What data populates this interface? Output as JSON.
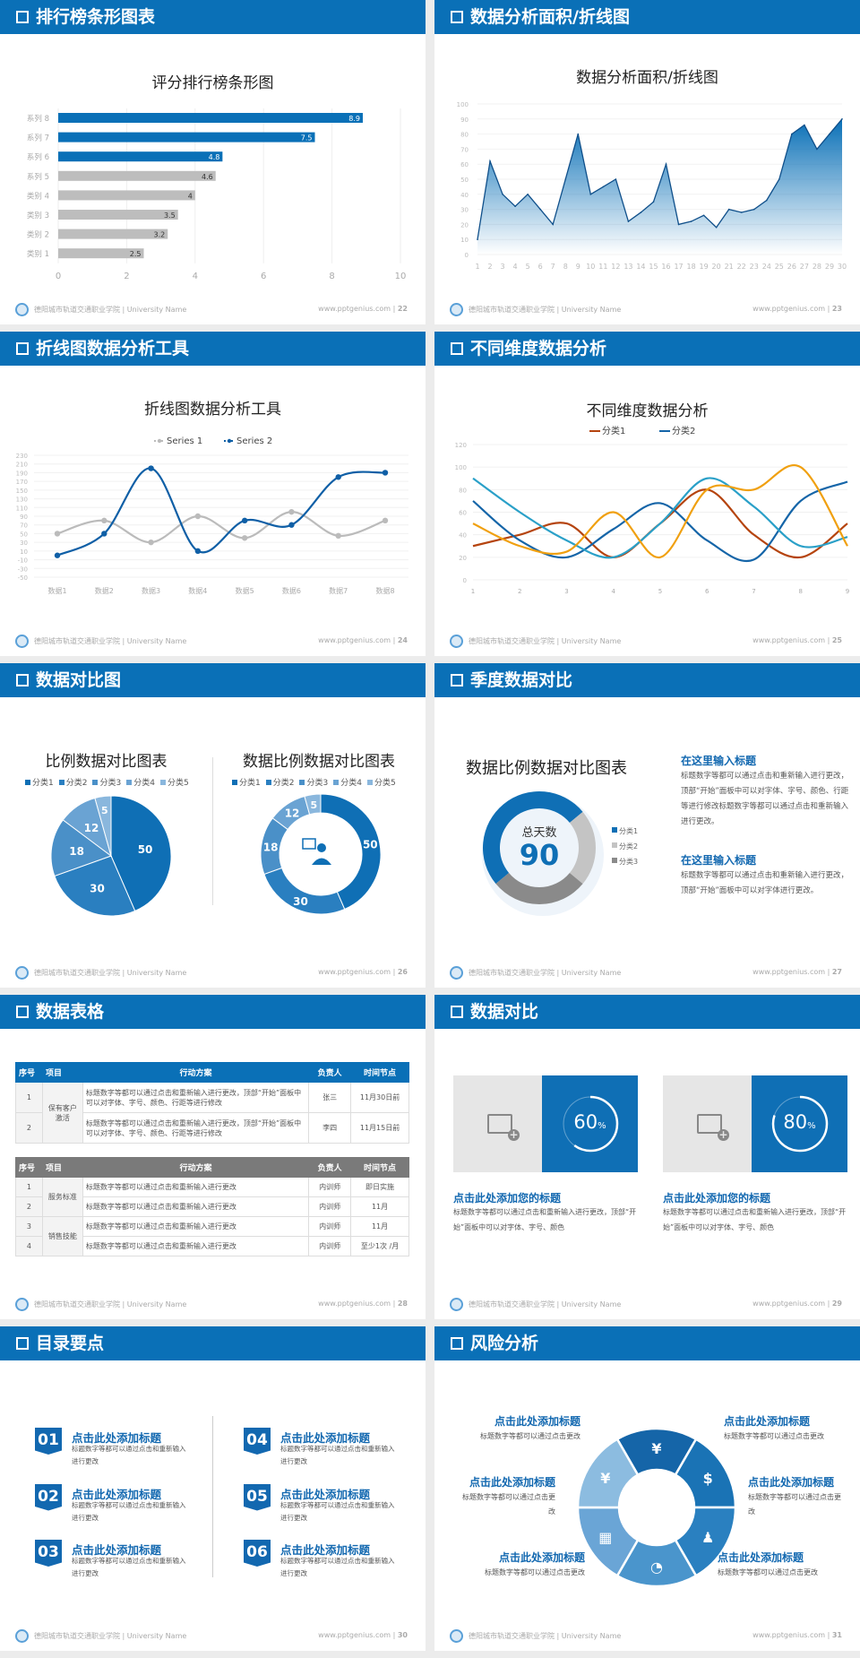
{
  "footer": {
    "school": "德阳城市轨道交通职业学院 | University Name",
    "url": "www.pptgenius.com  |"
  },
  "colors": {
    "primary": "#0a70b7",
    "gray_bar": "#bdbdbd"
  },
  "slides": [
    {
      "title": "排行榜条形图表",
      "page": "22"
    },
    {
      "title": "数据分析面积/折线图",
      "page": "23"
    },
    {
      "title": "折线图数据分析工具",
      "page": "24"
    },
    {
      "title": "不同维度数据分析",
      "page": "25"
    },
    {
      "title": "数据对比图",
      "page": "26"
    },
    {
      "title": "季度数据对比",
      "page": "27"
    },
    {
      "title": "数据表格",
      "page": "28"
    },
    {
      "title": "数据对比",
      "page": "29"
    },
    {
      "title": "目录要点",
      "page": "30"
    },
    {
      "title": "风险分析",
      "page": "31"
    }
  ],
  "chart_data": [
    {
      "type": "bar",
      "title": "评分排行榜条形图",
      "orientation": "horizontal",
      "categories": [
        "系列 8",
        "系列 7",
        "系列 6",
        "系列 5",
        "类别 4",
        "类别 3",
        "类别 2",
        "类别 1"
      ],
      "values": [
        8.9,
        7.5,
        4.8,
        4.6,
        4,
        3.5,
        3.2,
        2.5
      ],
      "highlight_colors": [
        "#0a70b7",
        "#0a70b7",
        "#0a70b7",
        "#bdbdbd",
        "#bdbdbd",
        "#bdbdbd",
        "#bdbdbd",
        "#bdbdbd"
      ],
      "xlim": [
        0,
        10
      ],
      "xticks": [
        "0",
        "2",
        "4",
        "6",
        "8",
        "10"
      ],
      "grid": true
    },
    {
      "type": "area",
      "title": "数据分析面积/折线图",
      "x": [
        "1",
        "2",
        "3",
        "4",
        "5",
        "6",
        "7",
        "8",
        "9",
        "10",
        "11",
        "12",
        "13",
        "14",
        "15",
        "16",
        "17",
        "18",
        "19",
        "20",
        "21",
        "22",
        "23",
        "24",
        "25",
        "26",
        "27",
        "28",
        "29",
        "30"
      ],
      "values": [
        10,
        62,
        40,
        32,
        40,
        30,
        20,
        50,
        80,
        40,
        45,
        50,
        22,
        28,
        35,
        60,
        20,
        22,
        26,
        18,
        30,
        28,
        30,
        36,
        50,
        80,
        86,
        70,
        80,
        90
      ],
      "ylim": [
        0,
        100
      ],
      "yticks": [
        "0",
        "10",
        "20",
        "30",
        "40",
        "50",
        "60",
        "70",
        "80",
        "90",
        "100"
      ],
      "color": "#0a70b7"
    },
    {
      "type": "line",
      "title": "折线图数据分析工具",
      "smooth": true,
      "categories": [
        "数据1",
        "数据2",
        "数据3",
        "数据4",
        "数据5",
        "数据6",
        "数据7",
        "数据8"
      ],
      "series": [
        {
          "name": "Series 1",
          "values": [
            50,
            80,
            30,
            90,
            40,
            100,
            45,
            80
          ],
          "color": "#bbbbbb"
        },
        {
          "name": "Series 2",
          "values": [
            0,
            50,
            200,
            10,
            80,
            70,
            180,
            190
          ],
          "color": "#0f5fa6"
        }
      ],
      "ylim": [
        -50,
        230
      ],
      "yticks": [
        "230",
        "210",
        "190",
        "170",
        "150",
        "130",
        "110",
        "90",
        "70",
        "50",
        "30",
        "10",
        "-10",
        "-30",
        "-50"
      ],
      "legend": "top"
    },
    {
      "type": "line",
      "title": "不同维度数据分析",
      "smooth": true,
      "categories": [
        "1",
        "2",
        "3",
        "4",
        "5",
        "6",
        "7",
        "8",
        "9"
      ],
      "series": [
        {
          "name": "分类1",
          "values": [
            30,
            40,
            50,
            20,
            50,
            80,
            40,
            20,
            50
          ],
          "color": "#b5440f"
        },
        {
          "name": "分类2",
          "values": [
            70,
            35,
            20,
            45,
            68,
            35,
            18,
            70,
            87
          ],
          "color": "#1565a8"
        },
        {
          "values": [
            90,
            60,
            35,
            20,
            50,
            90,
            65,
            30,
            38
          ],
          "color": "#2aa0c8"
        },
        {
          "values": [
            50,
            30,
            25,
            60,
            20,
            80,
            80,
            100,
            30
          ],
          "color": "#f0a010"
        }
      ],
      "ylim": [
        0,
        120
      ],
      "yticks": [
        "0",
        "20",
        "40",
        "60",
        "80",
        "100",
        "120"
      ],
      "legend": "top"
    },
    {
      "type": "pie",
      "title": "比例数据对比图表",
      "categories": [
        "分类1",
        "分类2",
        "分类3",
        "分类4",
        "分类5"
      ],
      "values": [
        50,
        30,
        18,
        12,
        5
      ],
      "colors": [
        "#0f6fb5",
        "#2a7fc0",
        "#4a90c8",
        "#6aa3d3",
        "#8ab7dd"
      ],
      "legend": "top"
    },
    {
      "type": "donut",
      "title": "数据比例数据对比图表",
      "categories": [
        "分类1",
        "分类2",
        "分类3",
        "分类4",
        "分类5"
      ],
      "values": [
        50,
        30,
        18,
        12,
        5
      ],
      "colors": [
        "#0f6fb5",
        "#2a7fc0",
        "#4a90c8",
        "#6aa3d3",
        "#8ab7dd"
      ],
      "legend": "top",
      "center_icon": "presenter-icon"
    },
    {
      "type": "donut",
      "title": "数据比例数据对比图表",
      "center_label": "总天数",
      "center_value": "90",
      "categories": [
        "分类1",
        "分类2",
        "分类3"
      ],
      "values": [
        50,
        22,
        28
      ],
      "colors": [
        "#0f6fb5",
        "#c4c4c4",
        "#8a8a8a"
      ],
      "legend": "right"
    }
  ],
  "quarter": {
    "blocks": [
      {
        "heading": "在这里输入标题",
        "text": "标题数字等都可以通过点击和重新输入进行更改，顶部“开始”面板中可以对字体、字号、颜色、行距等进行修改标题数字等都可以通过点击和重新输入进行更改。"
      },
      {
        "heading": "在这里输入标题",
        "text": "标题数字等都可以通过点击和重新输入进行更改，顶部“开始”面板中可以对字体进行更改。"
      }
    ]
  },
  "tables": {
    "headers": [
      "序号",
      "项目",
      "行动方案",
      "负责人",
      "时间节点"
    ],
    "table1": {
      "color": "#0a70b7",
      "groups": [
        {
          "name": "保有客户激活",
          "span": 2
        }
      ],
      "rows": [
        {
          "no": "1",
          "plan": "标题数字等都可以通过点击和重新输入进行更改，顶部“开始”面板中可以对字体、字号、颜色、行距等进行修改",
          "owner": "张三",
          "time": "11月30日前"
        },
        {
          "no": "2",
          "plan": "标题数字等都可以通过点击和重新输入进行更改，顶部“开始”面板中可以对字体、字号、颜色、行距等进行修改",
          "owner": "李四",
          "time": "11月15日前"
        }
      ]
    },
    "table2": {
      "color": "#7a7a7a",
      "groups": [
        {
          "name": "服务标准",
          "span": 2
        },
        {
          "name": "销售技能",
          "span": 2
        }
      ],
      "rows": [
        {
          "no": "1",
          "plan": "标题数字等都可以通过点击和重新输入进行更改",
          "owner": "内训师",
          "time": "即日实施"
        },
        {
          "no": "2",
          "plan": "标题数字等都可以通过点击和重新输入进行更改",
          "owner": "内训师",
          "time": "11月"
        },
        {
          "no": "3",
          "plan": "标题数字等都可以通过点击和重新输入进行更改",
          "owner": "内训师",
          "time": "11月"
        },
        {
          "no": "4",
          "plan": "标题数字等都可以通过点击和重新输入进行更改",
          "owner": "内训师",
          "time": "至少1次 /月"
        }
      ]
    }
  },
  "compare": {
    "cards": [
      {
        "percent": 60,
        "value": "60",
        "unit": "%",
        "heading": "点击此处添加您的标题",
        "text": "标题数字等都可以通过点击和重新输入进行更改，顶部“开始”面板中可以对字体、字号、颜色"
      },
      {
        "percent": 80,
        "value": "80",
        "unit": "%",
        "heading": "点击此处添加您的标题",
        "text": "标题数字等都可以通过点击和重新输入进行更改，顶部“开始”面板中可以对字体、字号、颜色"
      }
    ]
  },
  "toc": {
    "items": [
      {
        "num": "01",
        "title": "点击此处添加标题",
        "text": "标题数字等都可以通过点击和重新输入进行更改"
      },
      {
        "num": "02",
        "title": "点击此处添加标题",
        "text": "标题数字等都可以通过点击和重新输入进行更改"
      },
      {
        "num": "03",
        "title": "点击此处添加标题",
        "text": "标题数字等都可以通过点击和重新输入进行更改"
      },
      {
        "num": "04",
        "title": "点击此处添加标题",
        "text": "标题数字等都可以通过点击和重新输入进行更改"
      },
      {
        "num": "05",
        "title": "点击此处添加标题",
        "text": "标题数字等都可以通过点击和重新输入进行更改"
      },
      {
        "num": "06",
        "title": "点击此处添加标题",
        "text": "标题数字等都可以通过点击和重新输入进行更改"
      }
    ]
  },
  "risk": {
    "items": [
      {
        "title": "点击此处添加标题",
        "text": "标题数字等都可以通过点击更改",
        "icon": "money-bag-icon"
      },
      {
        "title": "点击此处添加标题",
        "text": "标题数字等都可以通过点击更改",
        "icon": "coins-icon"
      },
      {
        "title": "点击此处添加标题",
        "text": "标题数字等都可以通过点击更改",
        "icon": "users-icon"
      },
      {
        "title": "点击此处添加标题",
        "text": "标题数字等都可以通过点击更改",
        "icon": "pie-chart-icon"
      },
      {
        "title": "点击此处添加标题",
        "text": "标题数字等都可以通过点击更改",
        "icon": "building-icon"
      },
      {
        "title": "点击此处添加标题",
        "text": "标题数字等都可以通过点击更改",
        "icon": "yen-hand-icon"
      }
    ]
  }
}
